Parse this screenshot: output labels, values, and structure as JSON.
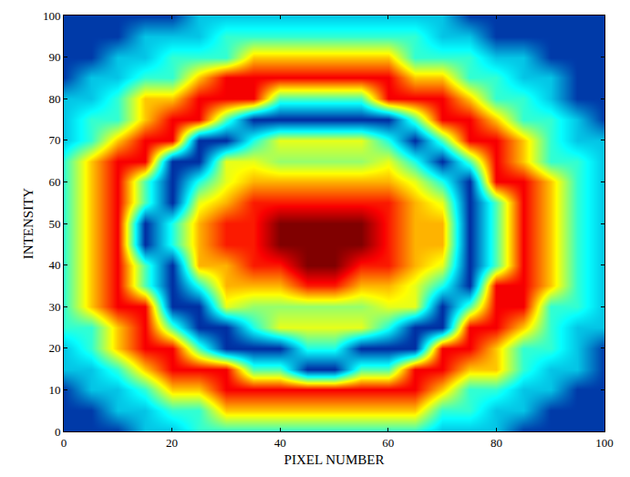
{
  "chart_data": {
    "type": "heatmap",
    "x_label": "PIXEL NUMBER",
    "y_label": "INTENSITY",
    "x": [
      0,
      5,
      10,
      15,
      20,
      25,
      30,
      35,
      40,
      45,
      50,
      55,
      60,
      65,
      70,
      75,
      80,
      85,
      90,
      95,
      100
    ],
    "y": [
      0,
      5,
      10,
      15,
      20,
      25,
      30,
      35,
      40,
      45,
      50,
      55,
      60,
      65,
      70,
      75,
      80,
      85,
      90,
      95,
      100
    ],
    "z": [
      [
        0.12,
        0.12,
        0.12,
        0.3,
        0.3,
        0.42,
        0.42,
        0.42,
        0.42,
        0.42,
        0.42,
        0.42,
        0.42,
        0.42,
        0.3,
        0.3,
        0.3,
        0.12,
        0.12,
        0.12,
        0.12
      ],
      [
        0.12,
        0.12,
        0.3,
        0.3,
        0.42,
        0.42,
        0.68,
        0.68,
        0.68,
        0.68,
        0.68,
        0.68,
        0.68,
        0.68,
        0.42,
        0.42,
        0.3,
        0.3,
        0.12,
        0.12,
        0.12
      ],
      [
        0.12,
        0.3,
        0.3,
        0.42,
        0.68,
        0.68,
        0.88,
        0.88,
        0.88,
        0.88,
        0.88,
        0.88,
        0.88,
        0.88,
        0.68,
        0.42,
        0.42,
        0.3,
        0.3,
        0.12,
        0.12
      ],
      [
        0.3,
        0.3,
        0.42,
        0.68,
        0.88,
        0.88,
        0.88,
        0.45,
        0.45,
        0.1,
        0.1,
        0.45,
        0.45,
        0.88,
        0.88,
        0.68,
        0.68,
        0.42,
        0.3,
        0.3,
        0.12
      ],
      [
        0.3,
        0.42,
        0.68,
        0.88,
        0.88,
        0.45,
        0.1,
        0.1,
        0.1,
        0.4,
        0.4,
        0.1,
        0.1,
        0.1,
        0.88,
        0.88,
        0.68,
        0.42,
        0.42,
        0.3,
        0.12
      ],
      [
        0.42,
        0.42,
        0.68,
        0.88,
        0.45,
        0.1,
        0.1,
        0.4,
        0.6,
        0.6,
        0.6,
        0.6,
        0.4,
        0.1,
        0.1,
        0.88,
        0.88,
        0.68,
        0.42,
        0.3,
        0.3
      ],
      [
        0.42,
        0.68,
        0.88,
        0.88,
        0.1,
        0.1,
        0.6,
        0.52,
        0.52,
        0.52,
        0.52,
        0.52,
        0.6,
        0.6,
        0.1,
        0.45,
        0.88,
        0.88,
        0.42,
        0.42,
        0.3
      ],
      [
        0.42,
        0.68,
        0.88,
        0.45,
        0.1,
        0.4,
        0.7,
        0.7,
        0.7,
        0.85,
        0.85,
        0.7,
        0.7,
        0.6,
        0.4,
        0.1,
        0.88,
        0.88,
        0.68,
        0.42,
        0.3
      ],
      [
        0.42,
        0.68,
        0.88,
        0.45,
        0.1,
        0.7,
        0.7,
        0.85,
        0.85,
        1.0,
        1.0,
        0.85,
        0.85,
        0.7,
        0.6,
        0.1,
        0.45,
        0.88,
        0.68,
        0.42,
        0.3
      ],
      [
        0.42,
        0.68,
        0.88,
        0.1,
        0.4,
        0.7,
        0.85,
        0.85,
        1.0,
        1.0,
        1.0,
        1.0,
        0.85,
        0.7,
        0.7,
        0.1,
        0.45,
        0.88,
        0.68,
        0.42,
        0.3
      ],
      [
        0.42,
        0.68,
        0.88,
        0.1,
        0.4,
        0.7,
        0.85,
        0.85,
        1.0,
        1.0,
        1.0,
        1.0,
        0.85,
        0.7,
        0.7,
        0.1,
        0.45,
        0.88,
        0.68,
        0.42,
        0.3
      ],
      [
        0.42,
        0.68,
        0.88,
        0.45,
        0.1,
        0.6,
        0.7,
        0.85,
        0.85,
        0.85,
        0.85,
        0.85,
        0.85,
        0.7,
        0.6,
        0.1,
        0.45,
        0.88,
        0.68,
        0.42,
        0.3
      ],
      [
        0.42,
        0.68,
        0.88,
        0.45,
        0.1,
        0.4,
        0.6,
        0.7,
        0.7,
        0.7,
        0.7,
        0.7,
        0.7,
        0.6,
        0.4,
        0.1,
        0.88,
        0.88,
        0.68,
        0.42,
        0.3
      ],
      [
        0.42,
        0.68,
        0.88,
        0.88,
        0.1,
        0.1,
        0.6,
        0.6,
        0.52,
        0.52,
        0.52,
        0.52,
        0.6,
        0.4,
        0.1,
        0.45,
        0.88,
        0.68,
        0.42,
        0.42,
        0.3
      ],
      [
        0.3,
        0.42,
        0.68,
        0.88,
        0.88,
        0.1,
        0.1,
        0.4,
        0.6,
        0.6,
        0.6,
        0.6,
        0.4,
        0.1,
        0.45,
        0.88,
        0.88,
        0.68,
        0.42,
        0.3,
        0.3
      ],
      [
        0.3,
        0.42,
        0.42,
        0.68,
        0.88,
        0.88,
        0.45,
        0.1,
        0.1,
        0.1,
        0.1,
        0.1,
        0.1,
        0.45,
        0.88,
        0.88,
        0.68,
        0.42,
        0.42,
        0.3,
        0.12
      ],
      [
        0.3,
        0.3,
        0.42,
        0.68,
        0.68,
        0.88,
        0.88,
        0.88,
        0.45,
        0.45,
        0.45,
        0.45,
        0.88,
        0.88,
        0.88,
        0.68,
        0.42,
        0.42,
        0.3,
        0.12,
        0.12
      ],
      [
        0.12,
        0.3,
        0.3,
        0.42,
        0.42,
        0.68,
        0.88,
        0.88,
        0.88,
        0.88,
        0.88,
        0.88,
        0.88,
        0.68,
        0.68,
        0.42,
        0.42,
        0.3,
        0.3,
        0.12,
        0.12
      ],
      [
        0.12,
        0.12,
        0.3,
        0.3,
        0.42,
        0.42,
        0.42,
        0.68,
        0.68,
        0.68,
        0.68,
        0.68,
        0.68,
        0.42,
        0.42,
        0.42,
        0.3,
        0.3,
        0.12,
        0.12,
        0.12
      ],
      [
        0.12,
        0.12,
        0.12,
        0.3,
        0.3,
        0.3,
        0.42,
        0.42,
        0.42,
        0.42,
        0.42,
        0.42,
        0.42,
        0.42,
        0.3,
        0.3,
        0.12,
        0.12,
        0.12,
        0.12,
        0.12
      ],
      [
        0.12,
        0.12,
        0.12,
        0.12,
        0.12,
        0.3,
        0.3,
        0.3,
        0.3,
        0.3,
        0.3,
        0.3,
        0.3,
        0.3,
        0.3,
        0.12,
        0.12,
        0.12,
        0.12,
        0.12,
        0.12
      ]
    ],
    "zlim": [
      0,
      1
    ],
    "xlim": [
      0,
      100
    ],
    "ylim": [
      0,
      100
    ],
    "xticks": [
      0,
      20,
      40,
      60,
      80,
      100
    ],
    "yticks": [
      0,
      10,
      20,
      30,
      40,
      50,
      60,
      70,
      80,
      90,
      100
    ]
  }
}
